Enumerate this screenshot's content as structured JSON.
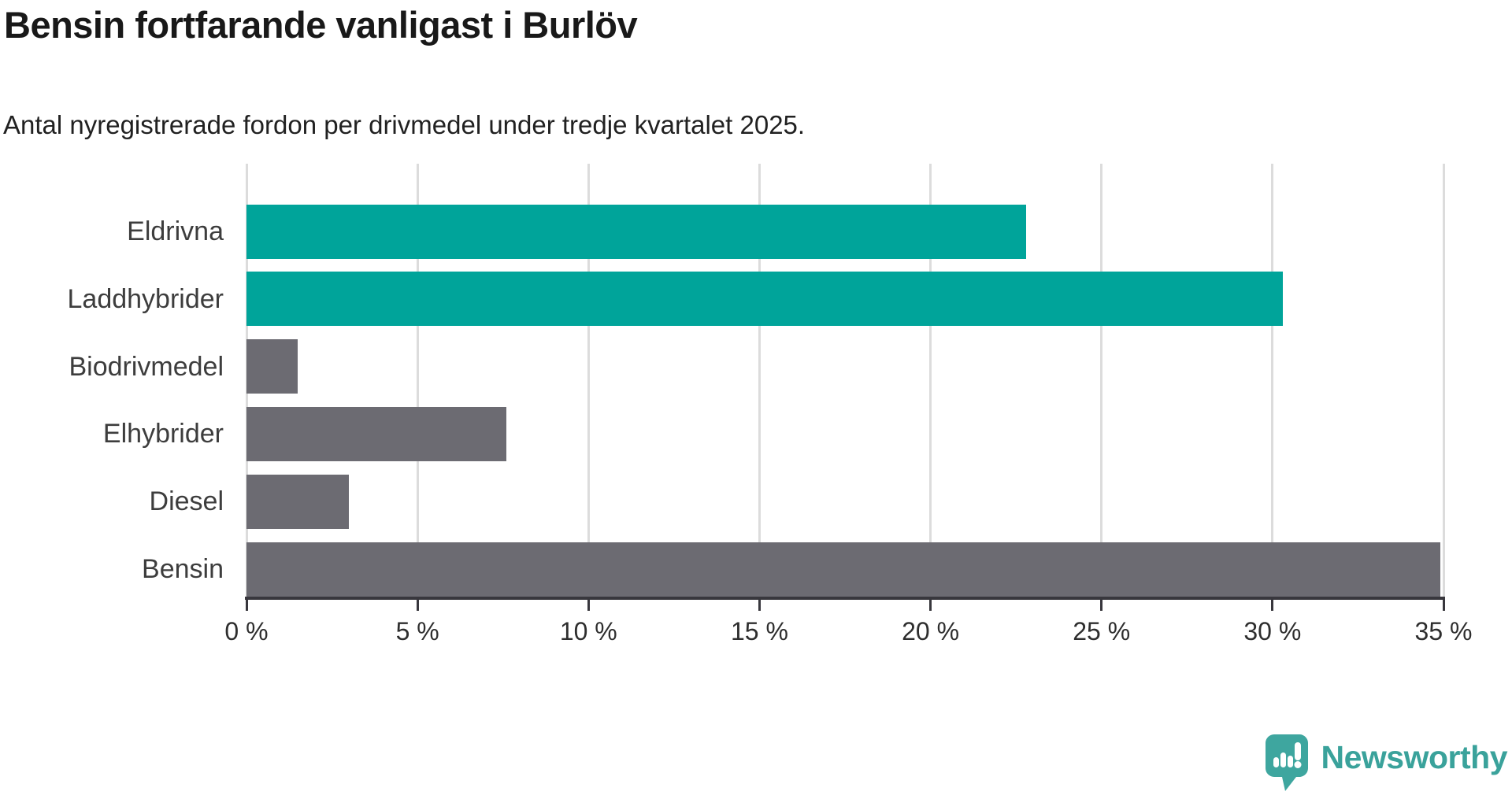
{
  "header": {
    "title": "Bensin fortfarande vanligast i Burlöv",
    "subtitle": "Antal nyregistrerade fordon per drivmedel under tredje kvartalet 2025."
  },
  "chart_data": {
    "type": "bar",
    "orientation": "horizontal",
    "categories": [
      "Eldrivna",
      "Laddhybrider",
      "Biodrivmedel",
      "Elhybrider",
      "Diesel",
      "Bensin"
    ],
    "values": [
      22.8,
      30.3,
      1.5,
      7.6,
      3,
      34.9
    ],
    "unit": "%",
    "xlim": [
      0,
      35
    ],
    "x_ticks": [
      0,
      5,
      10,
      15,
      20,
      25,
      30,
      35
    ],
    "x_tick_labels": [
      "0 %",
      "5 %",
      "10 %",
      "15 %",
      "20 %",
      "25 %",
      "30 %",
      "35 %"
    ],
    "bar_colors": [
      "#00a49a",
      "#00a49a",
      "#6c6b72",
      "#6c6b72",
      "#6c6b72",
      "#6c6b72"
    ],
    "colors": {
      "highlight": "#00a49a",
      "default": "#6c6b72",
      "gridline": "#dcdcdc",
      "axis": "#38373d",
      "label": "#3d3d3d"
    },
    "grid": true,
    "legend_position": "none",
    "title": "Bensin fortfarande vanligast i Burlöv",
    "xlabel": "",
    "ylabel": ""
  },
  "footer": {
    "brand": "Newsworthy",
    "logo_color": "#3ea69f",
    "logo_icon": "speech-bubble-bar-chart-exclamation"
  }
}
